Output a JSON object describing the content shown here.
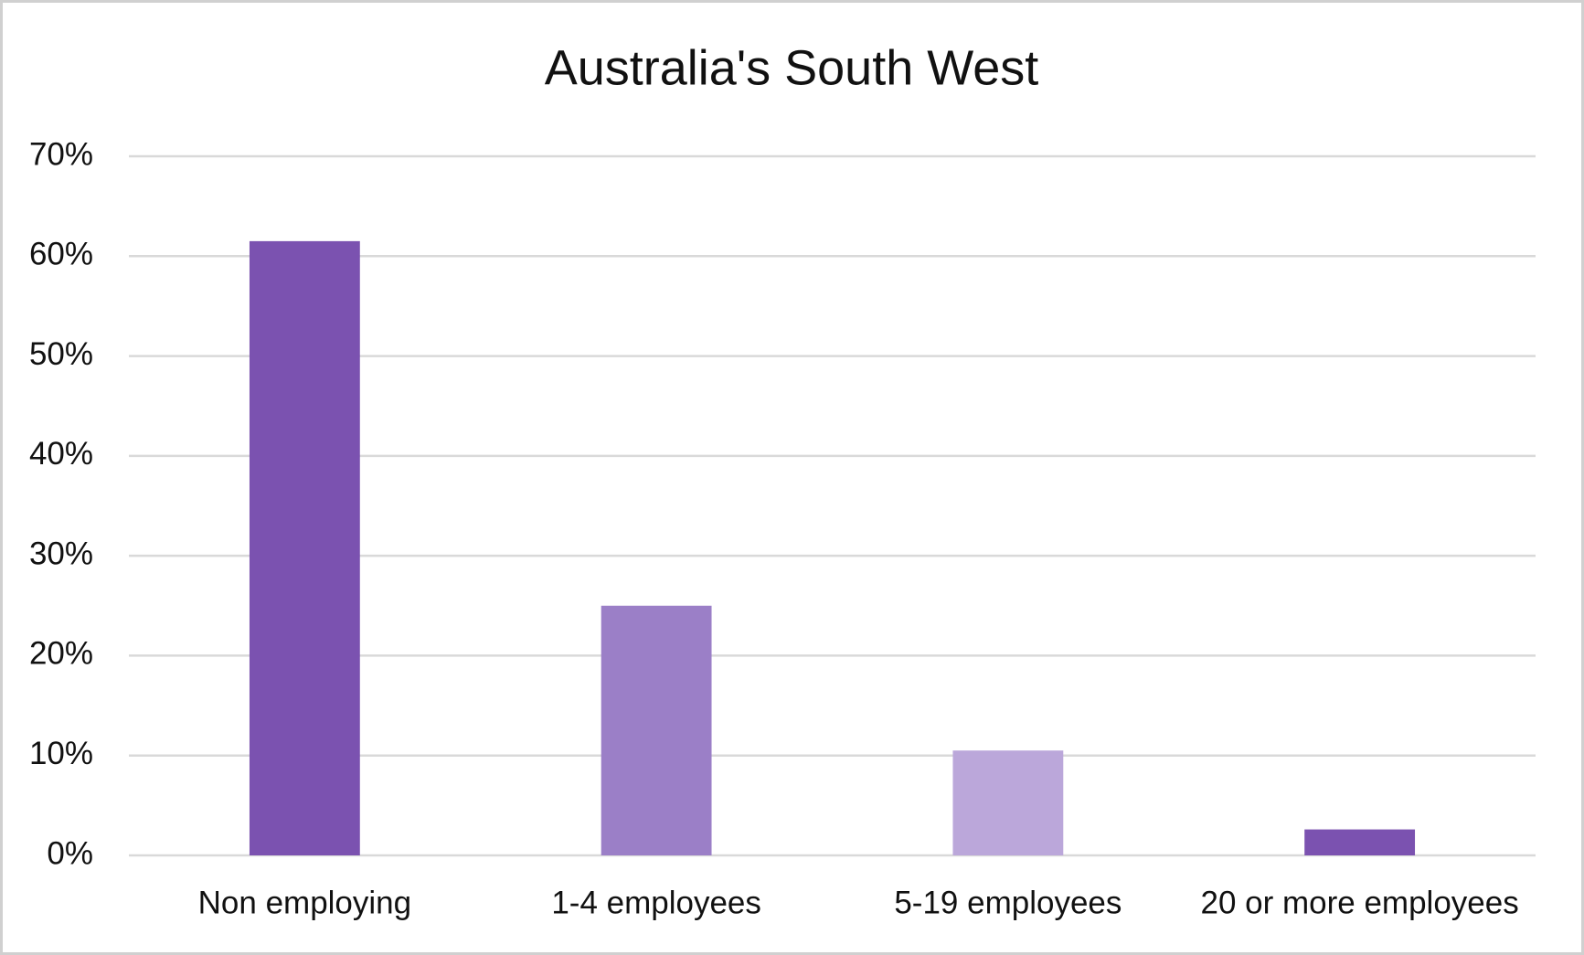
{
  "chart_data": {
    "type": "bar",
    "title": "Australia's South West",
    "categories": [
      "Non employing",
      "1-4 employees",
      "5-19 employees",
      "20 or more employees"
    ],
    "values": [
      61.5,
      25,
      10.5,
      2.6
    ],
    "colors": [
      "#7b52b0",
      "#9b7fc7",
      "#bba7da",
      "#7b52b0"
    ],
    "ylim": [
      0,
      70
    ],
    "yticks": [
      {
        "value": 0,
        "label": "0%"
      },
      {
        "value": 10,
        "label": "10%"
      },
      {
        "value": 20,
        "label": "20%"
      },
      {
        "value": 30,
        "label": "30%"
      },
      {
        "value": 40,
        "label": "40%"
      },
      {
        "value": 50,
        "label": "50%"
      },
      {
        "value": 60,
        "label": "60%"
      },
      {
        "value": 70,
        "label": "70%"
      }
    ],
    "grid": true
  }
}
